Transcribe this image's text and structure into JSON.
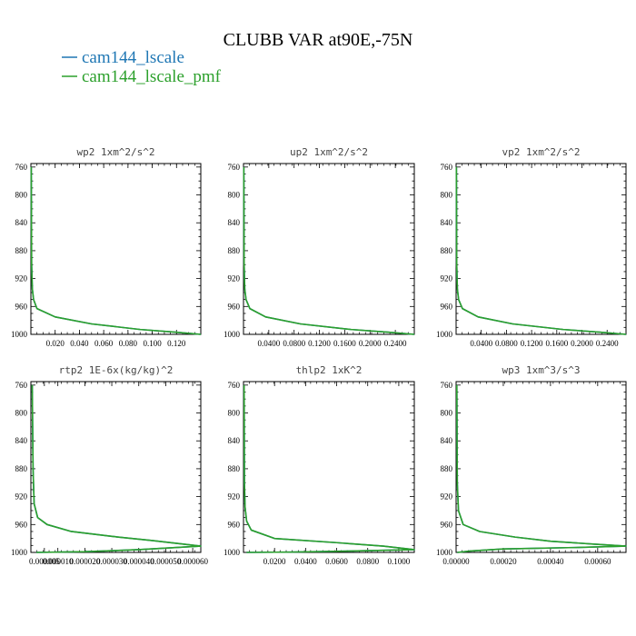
{
  "figure": {
    "title": "CLUBB VAR at90E,-75N",
    "legend": [
      {
        "label": "cam144_lscale",
        "color": "#1f77b4"
      },
      {
        "label": "cam144_lscale_pmf",
        "color": "#2ca02c"
      }
    ]
  },
  "chart_data": [
    {
      "type": "line",
      "title": "wp2  1xm^2/s^2",
      "ylim": [
        1000,
        755
      ],
      "xlim": [
        0,
        0.14
      ],
      "yticks": [
        760,
        800,
        840,
        880,
        920,
        960,
        1000
      ],
      "xticks": [
        0.02,
        0.04,
        0.06,
        0.08,
        0.1,
        0.12
      ],
      "xticklabels": [
        "0.020",
        "0.040",
        "0.060",
        "0.080",
        "0.100",
        "0.120"
      ],
      "series": [
        {
          "color": "#1f77b4",
          "points": [
            [
              0.0003,
              760
            ],
            [
              0.0006,
              900
            ],
            [
              0.0012,
              935
            ],
            [
              0.0022,
              950
            ],
            [
              0.005,
              963
            ],
            [
              0.02,
              975
            ],
            [
              0.05,
              985
            ],
            [
              0.09,
              993
            ],
            [
              0.12,
              997
            ],
            [
              0.14,
              1000
            ]
          ]
        },
        {
          "color": "#2ca02c",
          "points": [
            [
              0.0003,
              760
            ],
            [
              0.0006,
              900
            ],
            [
              0.0012,
              935
            ],
            [
              0.0022,
              950
            ],
            [
              0.005,
              963
            ],
            [
              0.02,
              975
            ],
            [
              0.05,
              985
            ],
            [
              0.09,
              993
            ],
            [
              0.12,
              997
            ],
            [
              0.14,
              1000
            ]
          ]
        }
      ]
    },
    {
      "type": "line",
      "title": "up2  1xm^2/s^2",
      "ylim": [
        1000,
        755
      ],
      "xlim": [
        0,
        0.27
      ],
      "yticks": [
        760,
        800,
        840,
        880,
        920,
        960,
        1000
      ],
      "xticks": [
        0.04,
        0.08,
        0.12,
        0.16,
        0.2,
        0.24
      ],
      "xticklabels": [
        "0.0400",
        "0.0800",
        "0.1200",
        "0.1600",
        "0.2000",
        "0.2400"
      ],
      "series": [
        {
          "color": "#1f77b4",
          "points": [
            [
              0.0005,
              760
            ],
            [
              0.001,
              900
            ],
            [
              0.002,
              935
            ],
            [
              0.004,
              950
            ],
            [
              0.01,
              963
            ],
            [
              0.035,
              975
            ],
            [
              0.09,
              985
            ],
            [
              0.17,
              993
            ],
            [
              0.23,
              997
            ],
            [
              0.27,
              1000
            ]
          ]
        },
        {
          "color": "#2ca02c",
          "points": [
            [
              0.0005,
              760
            ],
            [
              0.001,
              900
            ],
            [
              0.002,
              935
            ],
            [
              0.004,
              950
            ],
            [
              0.01,
              963
            ],
            [
              0.035,
              975
            ],
            [
              0.09,
              985
            ],
            [
              0.17,
              993
            ],
            [
              0.23,
              997
            ],
            [
              0.27,
              1000
            ]
          ]
        }
      ]
    },
    {
      "type": "line",
      "title": "vp2  1xm^2/s^2",
      "ylim": [
        1000,
        755
      ],
      "xlim": [
        0,
        0.27
      ],
      "yticks": [
        760,
        800,
        840,
        880,
        920,
        960,
        1000
      ],
      "xticks": [
        0.04,
        0.08,
        0.12,
        0.16,
        0.2,
        0.24
      ],
      "xticklabels": [
        "0.0400",
        "0.0800",
        "0.1200",
        "0.1600",
        "0.2000",
        "0.2400"
      ],
      "series": [
        {
          "color": "#1f77b4",
          "points": [
            [
              0.0005,
              760
            ],
            [
              0.001,
              900
            ],
            [
              0.002,
              935
            ],
            [
              0.004,
              950
            ],
            [
              0.01,
              963
            ],
            [
              0.035,
              975
            ],
            [
              0.09,
              985
            ],
            [
              0.17,
              993
            ],
            [
              0.23,
              997
            ],
            [
              0.27,
              1000
            ]
          ]
        },
        {
          "color": "#2ca02c",
          "points": [
            [
              0.0005,
              760
            ],
            [
              0.001,
              900
            ],
            [
              0.002,
              935
            ],
            [
              0.004,
              950
            ],
            [
              0.01,
              963
            ],
            [
              0.035,
              975
            ],
            [
              0.09,
              985
            ],
            [
              0.17,
              993
            ],
            [
              0.23,
              997
            ],
            [
              0.27,
              1000
            ]
          ]
        }
      ]
    },
    {
      "type": "line",
      "title": "rtp2  1E-6x(kg/kg)^2",
      "ylim": [
        1000,
        755
      ],
      "xlim": [
        0,
        6.3e-05
      ],
      "yticks": [
        760,
        800,
        840,
        880,
        920,
        960,
        1000
      ],
      "xticks": [
        5e-06,
        1e-05,
        2e-05,
        3e-05,
        4e-05,
        5e-05,
        6e-05
      ],
      "xticklabels": [
        "0.000005",
        "0.000010",
        "0.000020",
        "0.000030",
        "0.000040",
        "0.000050",
        "0.000060"
      ],
      "series": [
        {
          "color": "#1f77b4",
          "points": [
            [
              5e-07,
              760
            ],
            [
              6e-07,
              800
            ],
            [
              8e-07,
              880
            ],
            [
              1.2e-06,
              930
            ],
            [
              2.5e-06,
              950
            ],
            [
              6e-06,
              960
            ],
            [
              1.5e-05,
              970
            ],
            [
              3e-05,
              977
            ],
            [
              4.5e-05,
              983
            ],
            [
              6.3e-05,
              991
            ],
            [
              4e-05,
              996
            ],
            [
              2e-05,
              999
            ],
            [
              2e-06,
              1000
            ]
          ]
        },
        {
          "color": "#2ca02c",
          "points": [
            [
              5e-07,
              760
            ],
            [
              6e-07,
              800
            ],
            [
              8e-07,
              880
            ],
            [
              1.2e-06,
              930
            ],
            [
              2.5e-06,
              950
            ],
            [
              6e-06,
              960
            ],
            [
              1.5e-05,
              970
            ],
            [
              3e-05,
              977
            ],
            [
              4.5e-05,
              983
            ],
            [
              6.3e-05,
              991
            ],
            [
              4e-05,
              996
            ],
            [
              2e-05,
              999
            ],
            [
              2e-06,
              1000
            ]
          ]
        }
      ]
    },
    {
      "type": "line",
      "title": "thlp2  1xK^2",
      "ylim": [
        1000,
        755
      ],
      "xlim": [
        0,
        0.11
      ],
      "yticks": [
        760,
        800,
        840,
        880,
        920,
        960,
        1000
      ],
      "xticks": [
        0.02,
        0.04,
        0.06,
        0.08,
        0.1
      ],
      "xticklabels": [
        "0.0200",
        "0.0400",
        "0.0600",
        "0.0800",
        "0.1000"
      ],
      "series": [
        {
          "color": "#1f77b4",
          "points": [
            [
              0.0004,
              760
            ],
            [
              0.0006,
              900
            ],
            [
              0.001,
              935
            ],
            [
              0.002,
              955
            ],
            [
              0.005,
              968
            ],
            [
              0.02,
              980
            ],
            [
              0.06,
              986
            ],
            [
              0.09,
              991
            ],
            [
              0.11,
              996
            ],
            [
              0.07,
              998
            ],
            [
              0.03,
              999.5
            ],
            [
              0.002,
              1000
            ]
          ]
        },
        {
          "color": "#2ca02c",
          "points": [
            [
              0.0004,
              760
            ],
            [
              0.0006,
              900
            ],
            [
              0.001,
              935
            ],
            [
              0.002,
              955
            ],
            [
              0.005,
              968
            ],
            [
              0.02,
              980
            ],
            [
              0.06,
              986
            ],
            [
              0.09,
              991
            ],
            [
              0.11,
              996
            ],
            [
              0.07,
              998
            ],
            [
              0.03,
              999.5
            ],
            [
              0.002,
              1000
            ]
          ]
        }
      ]
    },
    {
      "type": "line",
      "title": "wp3  1xm^3/s^3",
      "ylim": [
        1000,
        755
      ],
      "xlim": [
        0,
        0.00072
      ],
      "yticks": [
        760,
        800,
        840,
        880,
        920,
        960,
        1000
      ],
      "xticks": [
        0,
        0.0002,
        0.0004,
        0.0006
      ],
      "xticklabels": [
        "0.00000",
        "0.00020",
        "0.00040",
        "0.00060"
      ],
      "series": [
        {
          "color": "#1f77b4",
          "points": [
            [
              3e-06,
              760
            ],
            [
              5e-06,
              900
            ],
            [
              1e-05,
              940
            ],
            [
              3e-05,
              960
            ],
            [
              0.0001,
              970
            ],
            [
              0.00025,
              978
            ],
            [
              0.0004,
              984
            ],
            [
              0.00058,
              988
            ],
            [
              0.00072,
              991
            ],
            [
              0.0005,
              993
            ],
            [
              0.0002,
              995
            ],
            [
              6e-05,
              998
            ],
            [
              5e-06,
              1000
            ]
          ]
        },
        {
          "color": "#2ca02c",
          "points": [
            [
              3e-06,
              760
            ],
            [
              5e-06,
              900
            ],
            [
              1e-05,
              940
            ],
            [
              3e-05,
              960
            ],
            [
              0.0001,
              970
            ],
            [
              0.00025,
              978
            ],
            [
              0.0004,
              984
            ],
            [
              0.00058,
              988
            ],
            [
              0.00072,
              991
            ],
            [
              0.0005,
              993
            ],
            [
              0.0002,
              995
            ],
            [
              6e-05,
              998
            ],
            [
              5e-06,
              1000
            ]
          ]
        }
      ]
    }
  ]
}
